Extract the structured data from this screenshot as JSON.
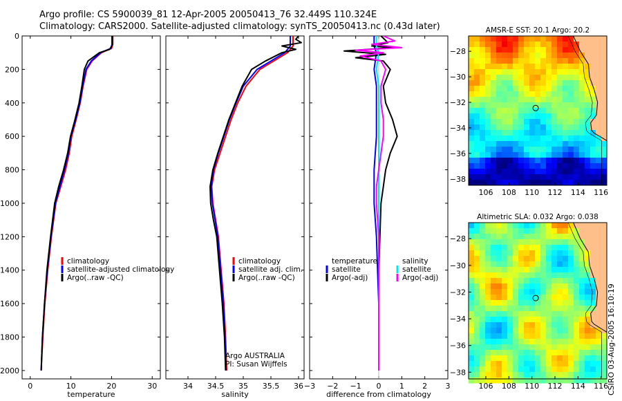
{
  "header": {
    "line1": "Argo profile: CS 5900039_81 12-Apr-2005 20050413_76 32.449S 110.324E",
    "line2": "Climatology: CARS2000. Satellite-adjusted climatology: synTS_20050413.nc (0.43d later)"
  },
  "stamp": "CSIRO 03-Aug-2005 16:10:19",
  "colors": {
    "climatology": "#ff0000",
    "satellite": "#0000ff",
    "argo": "#000000",
    "sal_satellite": "#00e5ee",
    "sal_argo": "#ff00ff",
    "land": "#ffbf8a"
  },
  "chart_data": [
    {
      "type": "line",
      "title": "",
      "xlabel": "temperature",
      "ylabel": "",
      "xlim": [
        -2,
        32
      ],
      "ylim": [
        2050,
        0
      ],
      "xticks": [
        0,
        10,
        20,
        30
      ],
      "yticks": [
        0,
        200,
        400,
        600,
        800,
        1000,
        1200,
        1400,
        1600,
        1800,
        2000
      ],
      "legend": {
        "placement": "lower-right",
        "entries": [
          "climatology",
          "satellite-adjusted climatology",
          "Argo(..raw -QC)"
        ]
      },
      "series": [
        {
          "name": "climatology",
          "color": "#ff0000",
          "points": [
            [
              20.3,
              0
            ],
            [
              20.3,
              50
            ],
            [
              20.0,
              75
            ],
            [
              17.5,
              100
            ],
            [
              15.2,
              150
            ],
            [
              13.9,
              200
            ],
            [
              13.0,
              300
            ],
            [
              12.3,
              400
            ],
            [
              11.3,
              500
            ],
            [
              10.2,
              600
            ],
            [
              9.6,
              700
            ],
            [
              8.7,
              800
            ],
            [
              7.5,
              900
            ],
            [
              6.3,
              1000
            ],
            [
              5.2,
              1200
            ],
            [
              4.3,
              1400
            ],
            [
              3.6,
              1600
            ],
            [
              3.1,
              1800
            ],
            [
              2.7,
              2000
            ]
          ]
        },
        {
          "name": "satellite-adjusted climatology",
          "color": "#0000ff",
          "points": [
            [
              20.1,
              0
            ],
            [
              20.1,
              50
            ],
            [
              19.8,
              75
            ],
            [
              17.3,
              100
            ],
            [
              15.0,
              150
            ],
            [
              13.7,
              200
            ],
            [
              12.9,
              300
            ],
            [
              12.2,
              400
            ],
            [
              11.2,
              500
            ],
            [
              10.0,
              600
            ],
            [
              9.4,
              700
            ],
            [
              8.4,
              800
            ],
            [
              7.3,
              900
            ],
            [
              6.2,
              1000
            ],
            [
              5.1,
              1200
            ],
            [
              4.2,
              1400
            ],
            [
              3.5,
              1600
            ],
            [
              3.0,
              1800
            ],
            [
              2.7,
              2000
            ]
          ]
        },
        {
          "name": "Argo(..raw -QC)",
          "color": "#000000",
          "points": [
            [
              20.2,
              0
            ],
            [
              20.2,
              55
            ],
            [
              19.5,
              80
            ],
            [
              17.0,
              100
            ],
            [
              14.2,
              150
            ],
            [
              13.3,
              200
            ],
            [
              12.7,
              300
            ],
            [
              12.0,
              400
            ],
            [
              11.0,
              500
            ],
            [
              9.9,
              600
            ],
            [
              9.2,
              700
            ],
            [
              8.2,
              800
            ],
            [
              7.0,
              900
            ],
            [
              6.0,
              1000
            ],
            [
              5.0,
              1200
            ],
            [
              4.1,
              1400
            ],
            [
              3.5,
              1600
            ],
            [
              3.0,
              1800
            ],
            [
              2.7,
              2000
            ]
          ]
        }
      ]
    },
    {
      "type": "line",
      "title": "",
      "xlabel": "salinity",
      "ylabel": "",
      "xlim": [
        33.6,
        36.1
      ],
      "ylim": [
        2050,
        0
      ],
      "xticks": [
        34,
        34.5,
        35,
        35.5,
        36
      ],
      "legend": {
        "placement": "lower-right",
        "entries": [
          "climatology",
          "satellite adj. clim.",
          "Argo(..raw -QC)"
        ]
      },
      "annotation": [
        "Argo AUSTRALIA",
        "PI: Susan Wijffels"
      ],
      "series": [
        {
          "name": "climatology",
          "color": "#ff0000",
          "points": [
            [
              35.9,
              0
            ],
            [
              35.9,
              60
            ],
            [
              35.8,
              100
            ],
            [
              35.55,
              150
            ],
            [
              35.3,
              200
            ],
            [
              35.05,
              300
            ],
            [
              34.9,
              400
            ],
            [
              34.78,
              500
            ],
            [
              34.68,
              600
            ],
            [
              34.58,
              700
            ],
            [
              34.48,
              800
            ],
            [
              34.43,
              900
            ],
            [
              34.45,
              1000
            ],
            [
              34.5,
              1100
            ],
            [
              34.55,
              1200
            ],
            [
              34.6,
              1400
            ],
            [
              34.65,
              1600
            ],
            [
              34.68,
              1800
            ],
            [
              34.7,
              2000
            ]
          ]
        },
        {
          "name": "satellite adj. clim.",
          "color": "#0000ff",
          "points": [
            [
              35.85,
              0
            ],
            [
              35.85,
              60
            ],
            [
              35.75,
              100
            ],
            [
              35.5,
              150
            ],
            [
              35.25,
              200
            ],
            [
              35.0,
              300
            ],
            [
              34.87,
              400
            ],
            [
              34.75,
              500
            ],
            [
              34.65,
              600
            ],
            [
              34.55,
              700
            ],
            [
              34.46,
              800
            ],
            [
              34.42,
              900
            ],
            [
              34.44,
              1000
            ],
            [
              34.49,
              1100
            ],
            [
              34.54,
              1200
            ],
            [
              34.59,
              1400
            ],
            [
              34.64,
              1600
            ],
            [
              34.67,
              1800
            ],
            [
              34.69,
              2000
            ]
          ]
        },
        {
          "name": "Argo(..raw -QC)",
          "color": "#000000",
          "points": [
            [
              36.0,
              0
            ],
            [
              35.95,
              20
            ],
            [
              36.05,
              40
            ],
            [
              35.7,
              60
            ],
            [
              35.95,
              80
            ],
            [
              35.7,
              100
            ],
            [
              35.4,
              150
            ],
            [
              35.15,
              200
            ],
            [
              34.98,
              300
            ],
            [
              34.86,
              400
            ],
            [
              34.74,
              500
            ],
            [
              34.64,
              600
            ],
            [
              34.54,
              700
            ],
            [
              34.45,
              800
            ],
            [
              34.4,
              900
            ],
            [
              34.41,
              1000
            ],
            [
              34.46,
              1100
            ],
            [
              34.52,
              1200
            ],
            [
              34.57,
              1400
            ],
            [
              34.62,
              1600
            ],
            [
              34.66,
              1800
            ],
            [
              34.68,
              2000
            ]
          ]
        }
      ]
    },
    {
      "type": "line",
      "title": "",
      "xlabel": "difference from climatology",
      "ylabel": "",
      "xlim": [
        -3,
        3
      ],
      "ylim": [
        2050,
        0
      ],
      "xticks": [
        -3,
        -2,
        -1,
        0,
        1,
        2,
        3
      ],
      "legend": {
        "placement": "lower-middle",
        "temperature_title": "temperature",
        "salinity_title": "salinity",
        "entries": [
          "satellite",
          "Argo(-adj)",
          "satellite",
          "Argo(-adj)"
        ]
      },
      "series": [
        {
          "name": "temperature satellite",
          "color": "#0000ff",
          "points": [
            [
              -0.2,
              0
            ],
            [
              -0.2,
              60
            ],
            [
              -0.1,
              100
            ],
            [
              -0.2,
              200
            ],
            [
              -0.1,
              300
            ],
            [
              -0.1,
              400
            ],
            [
              -0.1,
              600
            ],
            [
              -0.2,
              800
            ],
            [
              -0.2,
              1000
            ],
            [
              -0.1,
              1200
            ],
            [
              -0.05,
              1400
            ],
            [
              0,
              1600
            ],
            [
              0,
              1800
            ],
            [
              0,
              2000
            ]
          ]
        },
        {
          "name": "temperature Argo(-adj)",
          "color": "#000000",
          "points": [
            [
              0.1,
              0
            ],
            [
              0.4,
              40
            ],
            [
              -0.3,
              60
            ],
            [
              0.6,
              70
            ],
            [
              -1.5,
              90
            ],
            [
              0.3,
              110
            ],
            [
              -1.0,
              130
            ],
            [
              0.2,
              150
            ],
            [
              0.5,
              200
            ],
            [
              0.2,
              300
            ],
            [
              0.3,
              400
            ],
            [
              0.6,
              500
            ],
            [
              0.8,
              600
            ],
            [
              0.5,
              700
            ],
            [
              0.3,
              800
            ],
            [
              0.2,
              900
            ],
            [
              0.1,
              1000
            ],
            [
              0.05,
              1200
            ],
            [
              0,
              1400
            ],
            [
              0,
              1600
            ],
            [
              0,
              1800
            ],
            [
              0,
              2000
            ]
          ]
        },
        {
          "name": "salinity satellite",
          "color": "#00e5ee",
          "points": [
            [
              -0.1,
              0
            ],
            [
              -0.1,
              60
            ],
            [
              0,
              100
            ],
            [
              -0.1,
              200
            ],
            [
              0,
              300
            ],
            [
              0,
              400
            ],
            [
              0,
              600
            ],
            [
              0,
              800
            ],
            [
              0,
              1000
            ],
            [
              0,
              1200
            ],
            [
              0,
              1400
            ],
            [
              0,
              1600
            ],
            [
              0,
              1800
            ],
            [
              0,
              2000
            ]
          ]
        },
        {
          "name": "salinity Argo(-adj)",
          "color": "#ff00ff",
          "points": [
            [
              0.2,
              0
            ],
            [
              0.7,
              30
            ],
            [
              -0.3,
              50
            ],
            [
              1.0,
              70
            ],
            [
              -1.0,
              85
            ],
            [
              0.2,
              100
            ],
            [
              -0.8,
              120
            ],
            [
              0.1,
              150
            ],
            [
              0.3,
              200
            ],
            [
              0.1,
              300
            ],
            [
              0.1,
              400
            ],
            [
              0.2,
              500
            ],
            [
              0.2,
              600
            ],
            [
              0.1,
              700
            ],
            [
              0,
              800
            ],
            [
              -0.1,
              900
            ],
            [
              -0.1,
              1000
            ],
            [
              0,
              1200
            ],
            [
              0,
              1400
            ],
            [
              0,
              1600
            ],
            [
              0,
              1800
            ],
            [
              0,
              2000
            ]
          ]
        }
      ]
    },
    {
      "type": "heatmap",
      "title": "AMSR-E SST: 20.1 Argo: 20.2",
      "xlim": [
        104.5,
        116.5
      ],
      "ylim": [
        -38.5,
        -26.8
      ],
      "xticks": [
        106,
        108,
        110,
        112,
        114,
        116
      ],
      "yticks": [
        -28,
        -30,
        -32,
        -34,
        -36,
        -38
      ],
      "marker": {
        "lon": 110.324,
        "lat": -32.449
      }
    },
    {
      "type": "heatmap",
      "title": "Altimetric SLA: 0.032 Argo: 0.038",
      "xlim": [
        104.5,
        116.5
      ],
      "ylim": [
        -38.5,
        -26.8
      ],
      "xticks": [
        106,
        108,
        110,
        112,
        114,
        116
      ],
      "yticks": [
        -28,
        -30,
        -32,
        -34,
        -36,
        -38
      ],
      "marker": {
        "lon": 110.324,
        "lat": -32.449
      }
    }
  ]
}
